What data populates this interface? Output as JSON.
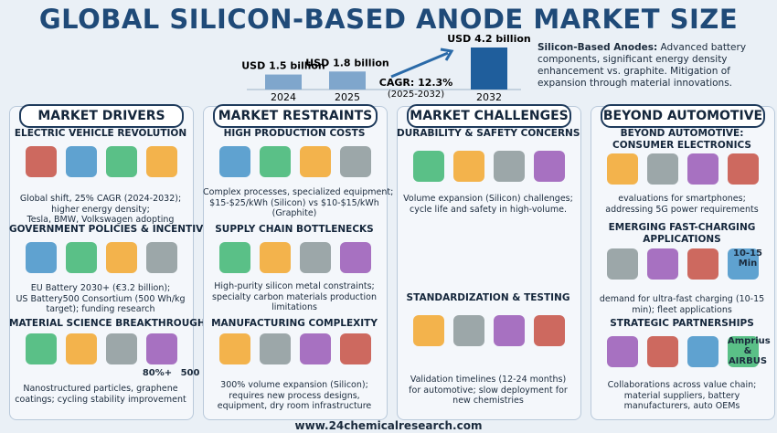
{
  "header": {
    "title": "GLOBAL SILICON-BASED ANODE MARKET SIZE"
  },
  "chart_data": {
    "type": "bar",
    "categories": [
      "2024",
      "2025",
      "2032"
    ],
    "values": [
      1.5,
      1.8,
      4.2
    ],
    "value_labels": [
      "USD 1.5 billion",
      "USD 1.8 billion",
      "USD 4.2 billion"
    ],
    "annotations": [
      "CAGR: 12.3%",
      "(2025-2032)"
    ]
  },
  "intro": {
    "heading": "Silicon-Based Anodes:",
    "text": [
      "Advanced battery",
      "components, significant energy density",
      "enhancement vs. graphite. Mitigation of",
      "expansion through material innovations."
    ]
  },
  "columns": [
    {
      "title": "MARKET DRIVERS",
      "sections": [
        {
          "heading": [
            "ELECTRIC VEHICLE REVOLUTION"
          ],
          "icon_labels": [],
          "text": [
            "Global shift, 25% CAGR (2024-2032);",
            "higher energy density;",
            "Tesla, BMW, Volkswagen adopting"
          ]
        },
        {
          "heading": [
            "GOVERNMENT POLICIES & INCENTIVES"
          ],
          "icon_labels": [],
          "text": [
            "EU Battery 2030+ (€3.2 billion);",
            "US Battery500 Consortium (500 Wh/kg",
            "target); funding research"
          ]
        },
        {
          "heading": [
            "MATERIAL SCIENCE BREAKTHROUGHS"
          ],
          "icon_labels": [
            "80%+",
            "500"
          ],
          "text": [
            "Nanostructured particles, graphene",
            "coatings; cycling stability improvement"
          ]
        }
      ]
    },
    {
      "title": "MARKET RESTRAINTS",
      "sections": [
        {
          "heading": [
            "HIGH PRODUCTION COSTS"
          ],
          "icon_labels": [],
          "text": [
            "Complex processes, specialized equipment;",
            "$15-$25/kWh (Silicon) vs $10-$15/kWh",
            "(Graphite)"
          ]
        },
        {
          "heading": [
            "SUPPLY CHAIN BOTTLENECKS"
          ],
          "icon_labels": [],
          "text": [
            "High-purity silicon metal constraints;",
            "specialty carbon materials production",
            "limitations"
          ]
        },
        {
          "heading": [
            "MANUFACTURING COMPLEXITY"
          ],
          "icon_labels": [],
          "text": [
            "300% volume expansion (Silicon);",
            "requires new process designs,",
            "equipment, dry room infrastructure"
          ]
        }
      ]
    },
    {
      "title": "MARKET CHALLENGES",
      "sections": [
        {
          "heading": [
            "DURABILITY & SAFETY CONCERNS"
          ],
          "icon_labels": [],
          "text": [
            "Volume expansion (Silicon) challenges;",
            "cycle life and safety in high-volume."
          ]
        },
        {
          "heading": [
            "STANDARDIZATION & TESTING"
          ],
          "icon_labels": [],
          "text": [
            "Validation timelines (12-24 months)",
            "for automotive; slow deployment for",
            "new chemistries"
          ]
        }
      ]
    },
    {
      "title": "BEYOND AUTOMOTIVE",
      "sections": [
        {
          "heading": [
            "BEYOND AUTOMOTIVE:",
            "CONSUMER ELECTRONICS"
          ],
          "icon_labels": [],
          "text": [
            "evaluations for smartphones;",
            "addressing 5G power requirements"
          ]
        },
        {
          "heading": [
            "EMERGING FAST-CHARGING",
            "APPLICATIONS"
          ],
          "icon_labels": [
            "10-15",
            "Min"
          ],
          "text": [
            "demand for ultra-fast charging (10-15",
            "min); fleet applications"
          ]
        },
        {
          "heading": [
            "STRATEGIC PARTNERSHIPS"
          ],
          "icon_labels": [
            "Amprius",
            "&",
            "AIRBUS"
          ],
          "text": [
            "Collaborations across value chain;",
            "material suppliers, battery",
            "manufacturers, auto OEMs"
          ]
        }
      ]
    }
  ],
  "footer": {
    "url": "www.24chemicalresearch.com"
  }
}
